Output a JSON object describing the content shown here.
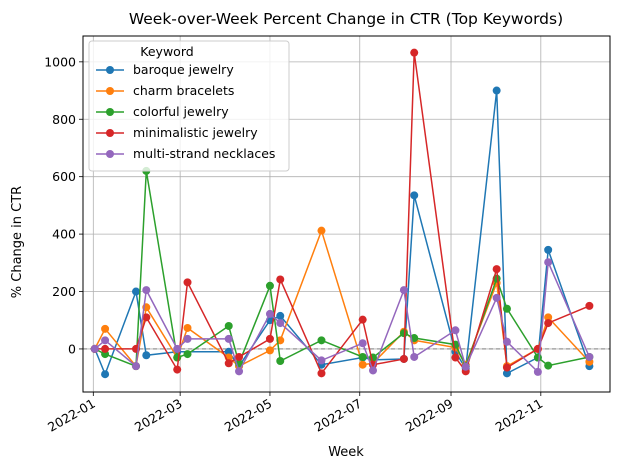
{
  "chart_data": {
    "type": "line",
    "title": "Week-over-Week Percent Change in CTR (Top Keywords)",
    "xlabel": "Week",
    "ylabel": "% Change in CTR",
    "xlim": [
      "2021-12-25",
      "2022-12-18"
    ],
    "ylim": [
      -150,
      1090
    ],
    "x_ticks": [
      "2022-01-01",
      "2022-03-01",
      "2022-05-01",
      "2022-07-01",
      "2022-09-01",
      "2022-11-01"
    ],
    "x_tick_labels": [
      "2022-01",
      "2022-03",
      "2022-05",
      "2022-07",
      "2022-09",
      "2022-11"
    ],
    "y_ticks": [
      0,
      200,
      400,
      600,
      800,
      1000
    ],
    "grid": true,
    "reference_line_y": 0,
    "legend": {
      "title": "Keyword",
      "placement": "top-left"
    },
    "series": [
      {
        "name": "baroque jewelry",
        "color": "#1f77b4",
        "points": [
          [
            "2022-01-02",
            0
          ],
          [
            "2022-01-09",
            -88
          ],
          [
            "2022-01-30",
            200
          ],
          [
            "2022-02-06",
            -22
          ],
          [
            "2022-02-27",
            -10
          ],
          [
            "2022-04-03",
            -10
          ],
          [
            "2022-04-10",
            -60
          ],
          [
            "2022-05-01",
            100
          ],
          [
            "2022-05-08",
            115
          ],
          [
            "2022-06-05",
            -55
          ],
          [
            "2022-07-03",
            -30
          ],
          [
            "2022-07-10",
            -38
          ],
          [
            "2022-07-31",
            -35
          ],
          [
            "2022-08-07",
            535
          ],
          [
            "2022-09-04",
            -10
          ],
          [
            "2022-09-11",
            -68
          ],
          [
            "2022-10-02",
            900
          ],
          [
            "2022-10-09",
            -85
          ],
          [
            "2022-10-30",
            -30
          ],
          [
            "2022-11-06",
            345
          ],
          [
            "2022-12-04",
            -60
          ]
        ]
      },
      {
        "name": "charm bracelets",
        "color": "#ff7f0e",
        "points": [
          [
            "2022-01-02",
            0
          ],
          [
            "2022-01-09",
            70
          ],
          [
            "2022-01-30",
            -60
          ],
          [
            "2022-02-06",
            145
          ],
          [
            "2022-02-27",
            -30
          ],
          [
            "2022-03-06",
            73
          ],
          [
            "2022-04-03",
            -30
          ],
          [
            "2022-04-10",
            -60
          ],
          [
            "2022-05-01",
            -5
          ],
          [
            "2022-05-08",
            30
          ],
          [
            "2022-06-05",
            412
          ],
          [
            "2022-07-03",
            -55
          ],
          [
            "2022-07-10",
            -50
          ],
          [
            "2022-07-31",
            60
          ],
          [
            "2022-08-07",
            30
          ],
          [
            "2022-09-04",
            5
          ],
          [
            "2022-09-11",
            -55
          ],
          [
            "2022-10-02",
            230
          ],
          [
            "2022-10-09",
            -60
          ],
          [
            "2022-10-30",
            0
          ],
          [
            "2022-11-06",
            110
          ],
          [
            "2022-12-04",
            -45
          ]
        ]
      },
      {
        "name": "colorful jewelry",
        "color": "#2ca02c",
        "points": [
          [
            "2022-01-02",
            0
          ],
          [
            "2022-01-09",
            -18
          ],
          [
            "2022-01-30",
            -60
          ],
          [
            "2022-02-06",
            620
          ],
          [
            "2022-02-27",
            -30
          ],
          [
            "2022-03-06",
            -18
          ],
          [
            "2022-04-03",
            80
          ],
          [
            "2022-04-10",
            -50
          ],
          [
            "2022-05-01",
            220
          ],
          [
            "2022-05-08",
            -42
          ],
          [
            "2022-06-05",
            30
          ],
          [
            "2022-07-03",
            -28
          ],
          [
            "2022-07-10",
            -30
          ],
          [
            "2022-07-31",
            55
          ],
          [
            "2022-08-07",
            38
          ],
          [
            "2022-09-04",
            15
          ],
          [
            "2022-09-11",
            -60
          ],
          [
            "2022-10-02",
            245
          ],
          [
            "2022-10-09",
            140
          ],
          [
            "2022-10-30",
            -30
          ],
          [
            "2022-11-06",
            -58
          ],
          [
            "2022-12-04",
            -28
          ]
        ]
      },
      {
        "name": "minimalistic jewelry",
        "color": "#d62728",
        "points": [
          [
            "2022-01-02",
            0
          ],
          [
            "2022-01-09",
            0
          ],
          [
            "2022-01-30",
            0
          ],
          [
            "2022-02-06",
            110
          ],
          [
            "2022-02-27",
            -72
          ],
          [
            "2022-03-06",
            232
          ],
          [
            "2022-04-03",
            -50
          ],
          [
            "2022-04-10",
            -28
          ],
          [
            "2022-05-01",
            35
          ],
          [
            "2022-05-08",
            242
          ],
          [
            "2022-06-05",
            -85
          ],
          [
            "2022-07-03",
            102
          ],
          [
            "2022-07-10",
            -55
          ],
          [
            "2022-07-31",
            -35
          ],
          [
            "2022-08-07",
            1032
          ],
          [
            "2022-09-04",
            -30
          ],
          [
            "2022-09-11",
            -78
          ],
          [
            "2022-10-02",
            278
          ],
          [
            "2022-10-09",
            -65
          ],
          [
            "2022-10-30",
            0
          ],
          [
            "2022-11-06",
            90
          ],
          [
            "2022-12-04",
            150
          ]
        ]
      },
      {
        "name": "multi-strand necklaces",
        "color": "#9467bd",
        "points": [
          [
            "2022-01-02",
            0
          ],
          [
            "2022-01-09",
            30
          ],
          [
            "2022-01-30",
            -60
          ],
          [
            "2022-02-06",
            205
          ],
          [
            "2022-02-27",
            0
          ],
          [
            "2022-03-06",
            35
          ],
          [
            "2022-04-03",
            35
          ],
          [
            "2022-04-10",
            -78
          ],
          [
            "2022-05-01",
            122
          ],
          [
            "2022-05-08",
            90
          ],
          [
            "2022-06-05",
            -40
          ],
          [
            "2022-07-03",
            20
          ],
          [
            "2022-07-10",
            -75
          ],
          [
            "2022-07-31",
            205
          ],
          [
            "2022-08-07",
            -28
          ],
          [
            "2022-09-04",
            65
          ],
          [
            "2022-09-11",
            -62
          ],
          [
            "2022-10-02",
            178
          ],
          [
            "2022-10-09",
            25
          ],
          [
            "2022-10-30",
            -80
          ],
          [
            "2022-11-06",
            302
          ],
          [
            "2022-12-04",
            -28
          ]
        ]
      }
    ]
  }
}
